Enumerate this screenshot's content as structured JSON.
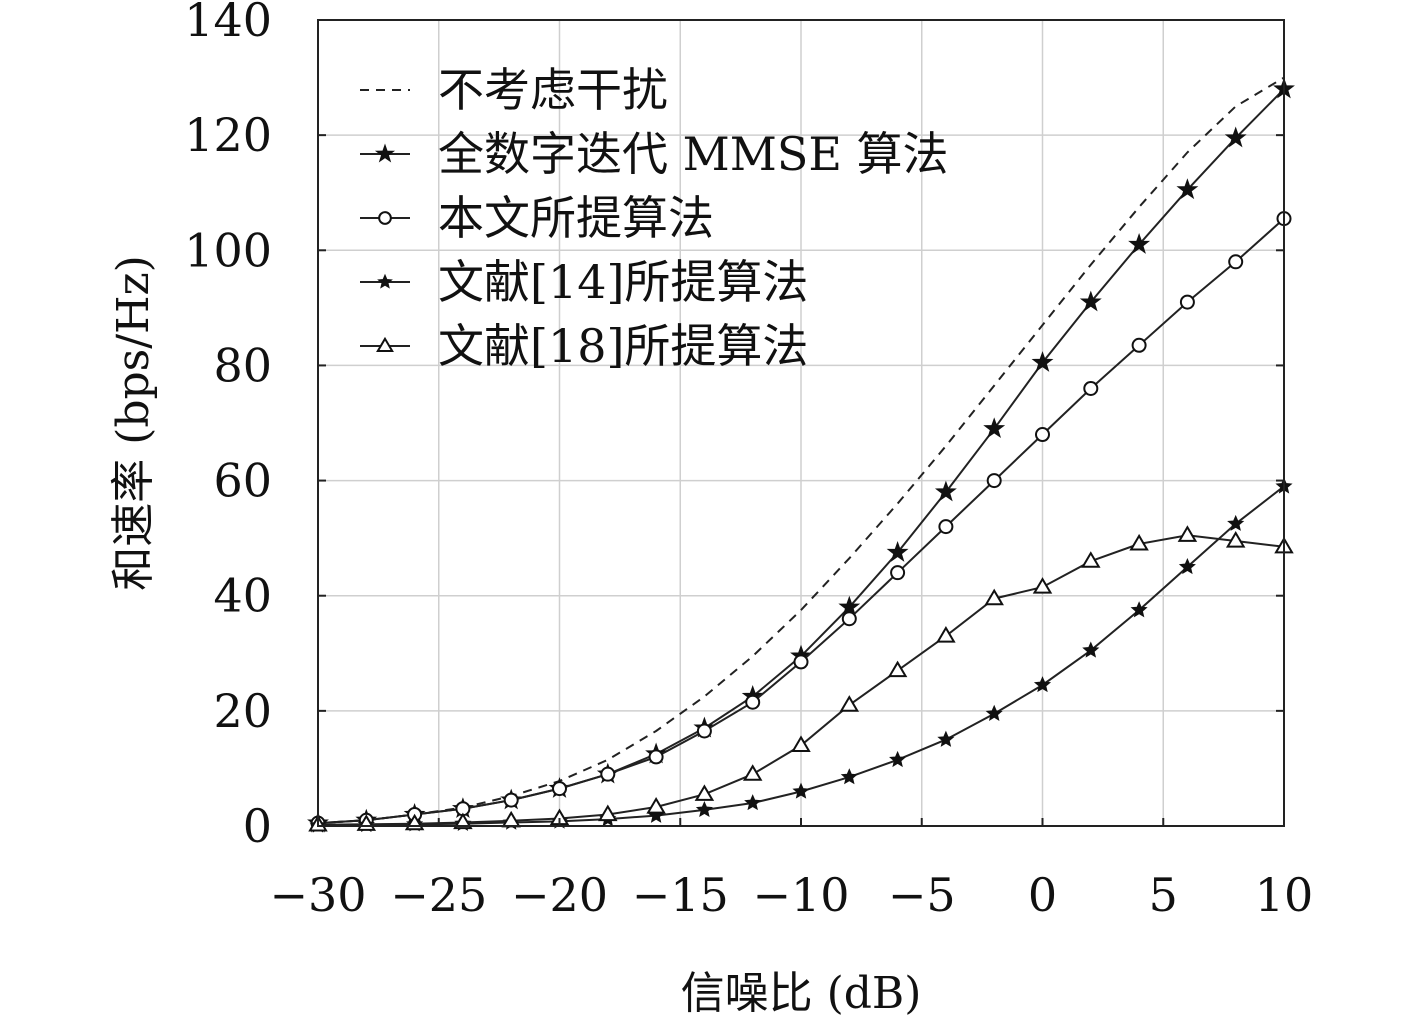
{
  "chart_data": {
    "type": "line",
    "xlabel": "信噪比 (dB)",
    "ylabel": "和速率 (bps/Hz)",
    "xlim": [
      -30,
      10
    ],
    "ylim": [
      0,
      140
    ],
    "xticks": [
      "−30",
      "−25",
      "−20",
      "−15",
      "−10",
      "−5",
      "0",
      "5",
      "10"
    ],
    "yticks": [
      "0",
      "20",
      "40",
      "60",
      "80",
      "100",
      "120",
      "140"
    ],
    "grid": true,
    "legend_position": "top-left",
    "x": [
      -30,
      -28,
      -26,
      -24,
      -22,
      -20,
      -18,
      -16,
      -14,
      -12,
      -10,
      -8,
      -6,
      -4,
      -2,
      0,
      2,
      4,
      6,
      8,
      10
    ],
    "series": [
      {
        "name": "不考虑干扰",
        "style": "dashed",
        "marker": "none",
        "values": [
          0.5,
          1.0,
          2.0,
          3.2,
          5.2,
          7.8,
          11.5,
          16.5,
          22.5,
          29.5,
          37.5,
          46.5,
          56.0,
          66.0,
          76.5,
          87.0,
          97.5,
          107.5,
          117.0,
          125.0,
          130.0
        ]
      },
      {
        "name": "全数字迭代 MMSE 算法",
        "style": "solid",
        "marker": "star",
        "values": [
          0.5,
          1.0,
          2.0,
          3.0,
          4.5,
          6.5,
          9.0,
          12.5,
          17.0,
          22.5,
          29.5,
          38.0,
          47.5,
          58.0,
          69.0,
          80.5,
          91.0,
          101.0,
          110.5,
          119.5,
          128.0
        ]
      },
      {
        "name": "本文所提算法",
        "style": "solid",
        "marker": "circle",
        "values": [
          0.5,
          1.0,
          2.0,
          3.0,
          4.5,
          6.5,
          9.0,
          12.0,
          16.5,
          21.5,
          28.5,
          36.0,
          44.0,
          52.0,
          60.0,
          68.0,
          76.0,
          83.5,
          91.0,
          98.0,
          105.5
        ]
      },
      {
        "name": "文献[14]所提算法",
        "style": "solid",
        "marker": "asterisk",
        "values": [
          0.1,
          0.2,
          0.3,
          0.4,
          0.6,
          0.8,
          1.2,
          1.8,
          2.8,
          4.0,
          6.0,
          8.5,
          11.5,
          15.0,
          19.5,
          24.5,
          30.5,
          37.5,
          45.0,
          52.5,
          59.0
        ]
      },
      {
        "name": "文献[18]所提算法",
        "style": "solid",
        "marker": "triangle",
        "values": [
          0.2,
          0.3,
          0.4,
          0.6,
          0.9,
          1.3,
          2.0,
          3.3,
          5.5,
          9.0,
          14.0,
          21.0,
          27.0,
          33.0,
          39.5,
          41.5,
          46.0,
          49.0,
          50.5,
          49.5,
          48.5
        ]
      }
    ]
  }
}
